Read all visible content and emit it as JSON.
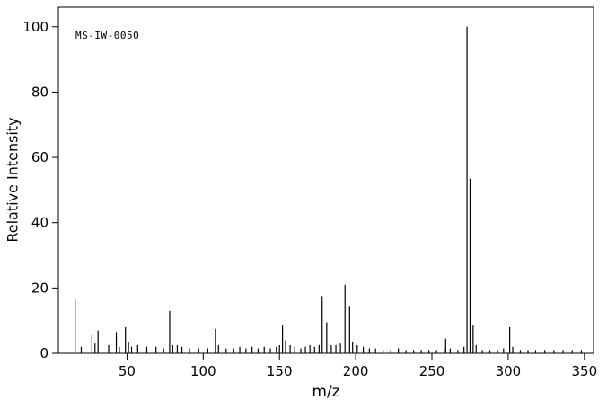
{
  "labels": {
    "watermark": "MS-IW-0050",
    "ylabel": "Relative Intensity",
    "xlabel": "m/z"
  },
  "colors": {
    "line": "#000000",
    "background": "#ffffff",
    "frame": "#000000"
  },
  "chart_data": {
    "type": "bar",
    "subtype": "mass-spectrum",
    "title": "MS-IW-0050",
    "xlabel": "m/z",
    "ylabel": "Relative Intensity",
    "xlim": [
      5,
      356
    ],
    "ylim": [
      0,
      106
    ],
    "x_ticks": [
      50,
      100,
      150,
      200,
      250,
      300,
      350
    ],
    "y_ticks": [
      0,
      20,
      40,
      60,
      80,
      100
    ],
    "grid": false,
    "legend": false,
    "peaks": [
      [
        16,
        16.5
      ],
      [
        20,
        2
      ],
      [
        27,
        5.5
      ],
      [
        29,
        3
      ],
      [
        31,
        7
      ],
      [
        38,
        2.5
      ],
      [
        43,
        6.5
      ],
      [
        45,
        2
      ],
      [
        49,
        8
      ],
      [
        51,
        3.5
      ],
      [
        53,
        2
      ],
      [
        57,
        2.5
      ],
      [
        63,
        2
      ],
      [
        69,
        2
      ],
      [
        74,
        1.5
      ],
      [
        78,
        13
      ],
      [
        80,
        2.5
      ],
      [
        83,
        2.5
      ],
      [
        86,
        2
      ],
      [
        91,
        1.5
      ],
      [
        97,
        1.5
      ],
      [
        103,
        1.5
      ],
      [
        108,
        7.5
      ],
      [
        110,
        2.5
      ],
      [
        115,
        1.5
      ],
      [
        120,
        1.5
      ],
      [
        124,
        2
      ],
      [
        128,
        1.5
      ],
      [
        132,
        2
      ],
      [
        136,
        1.5
      ],
      [
        140,
        2
      ],
      [
        144,
        1.5
      ],
      [
        148,
        2
      ],
      [
        150,
        2.5
      ],
      [
        152,
        8.5
      ],
      [
        154,
        4
      ],
      [
        157,
        2.5
      ],
      [
        160,
        2
      ],
      [
        164,
        1.5
      ],
      [
        167,
        2
      ],
      [
        170,
        2.5
      ],
      [
        173,
        2
      ],
      [
        176,
        2.5
      ],
      [
        178,
        17.5
      ],
      [
        181,
        9.5
      ],
      [
        184,
        2.5
      ],
      [
        187,
        2.5
      ],
      [
        190,
        3
      ],
      [
        193,
        21
      ],
      [
        196,
        14.5
      ],
      [
        198,
        3.5
      ],
      [
        201,
        2.5
      ],
      [
        205,
        2
      ],
      [
        209,
        1.5
      ],
      [
        213,
        1.5
      ],
      [
        218,
        1
      ],
      [
        223,
        1
      ],
      [
        228,
        1.5
      ],
      [
        233,
        1
      ],
      [
        238,
        1
      ],
      [
        243,
        1
      ],
      [
        248,
        1
      ],
      [
        253,
        1
      ],
      [
        258,
        1.5
      ],
      [
        259,
        4.5
      ],
      [
        262,
        1.5
      ],
      [
        267,
        1
      ],
      [
        271,
        2
      ],
      [
        273,
        100
      ],
      [
        275,
        53.5
      ],
      [
        277,
        8.5
      ],
      [
        279,
        2.5
      ],
      [
        283,
        1
      ],
      [
        288,
        1
      ],
      [
        293,
        1
      ],
      [
        297,
        1.5
      ],
      [
        301,
        8
      ],
      [
        303,
        2
      ],
      [
        308,
        1
      ],
      [
        313,
        1
      ],
      [
        318,
        1
      ],
      [
        324,
        1
      ],
      [
        330,
        1
      ],
      [
        336,
        1
      ],
      [
        342,
        1
      ],
      [
        348,
        1
      ]
    ]
  }
}
